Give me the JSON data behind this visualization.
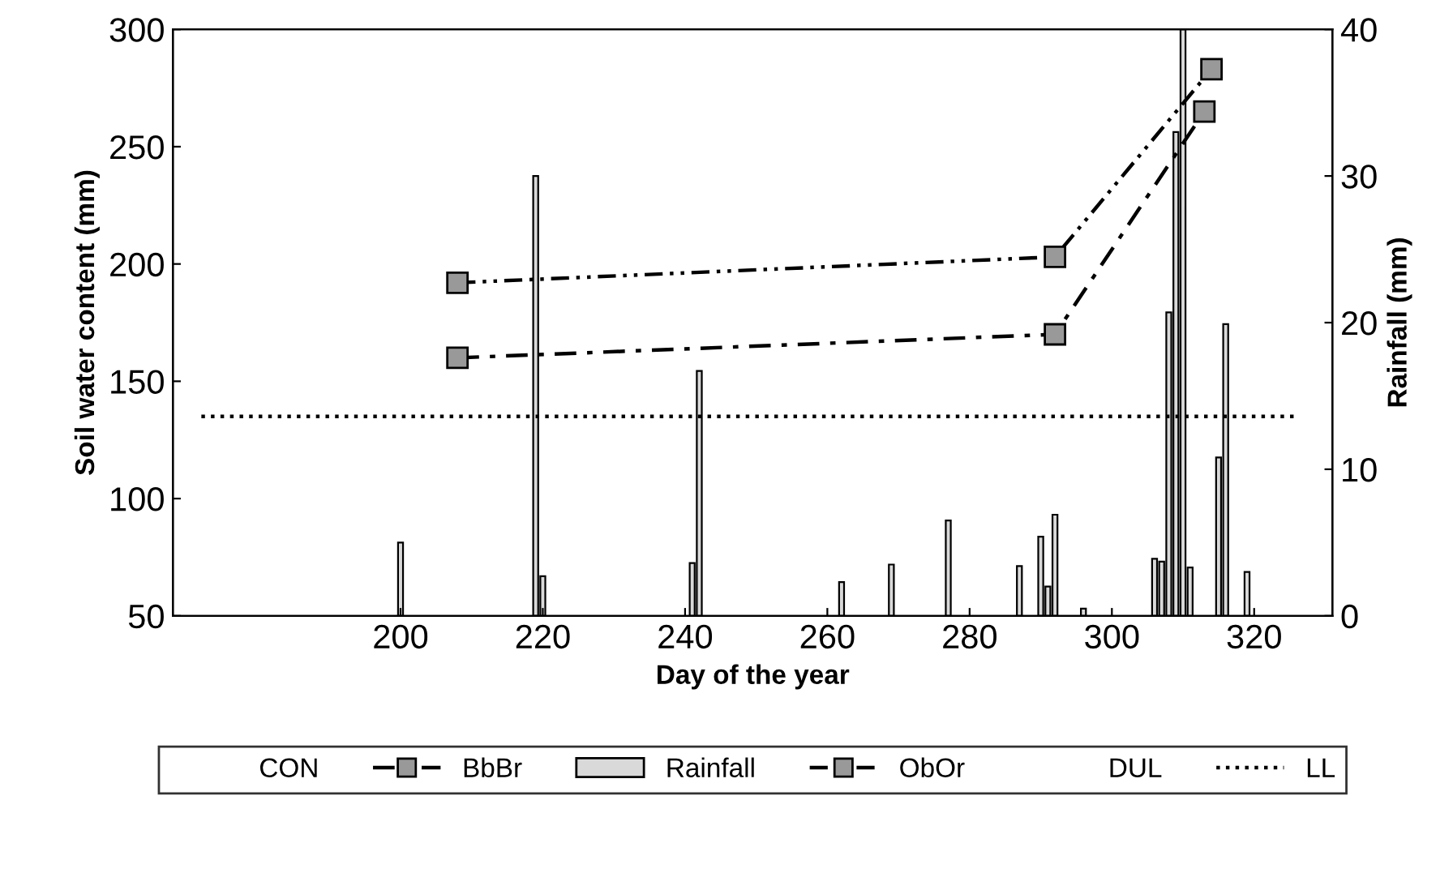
{
  "chart_data": {
    "type": "line",
    "xlabel": "Day of the year",
    "ylabel": "Soil water content (mm)",
    "y2label": "Rainfall (mm)",
    "xlim": [
      168,
      331
    ],
    "xticks": [
      200,
      220,
      240,
      260,
      280,
      300,
      320
    ],
    "ylim": [
      50,
      300
    ],
    "yticks": [
      50,
      100,
      150,
      200,
      250,
      300
    ],
    "y2lim": [
      0,
      40
    ],
    "y2ticks": [
      0,
      10,
      20,
      30,
      40
    ],
    "grid": false,
    "legend": "bottom",
    "series": [
      {
        "name": "CON",
        "color": null,
        "marker": "none"
      },
      {
        "name": "BbBr",
        "color": "#000000",
        "x": [
          208,
          292,
          313
        ],
        "values": [
          160,
          170,
          265
        ],
        "marker": "square",
        "line_style": "dashdot"
      },
      {
        "name": "Rainfall",
        "type": "bar",
        "axis": "y2",
        "color": "#d9d9d9",
        "x": [
          200,
          219,
          220,
          241,
          242,
          262,
          269,
          277,
          287,
          290,
          291,
          292,
          296,
          306,
          307,
          308,
          309,
          310,
          311,
          315,
          316,
          319
        ],
        "values": [
          5.0,
          30,
          2.7,
          3.6,
          16.7,
          2.3,
          3.5,
          6.5,
          3.4,
          5.4,
          2.0,
          6.9,
          0.5,
          3.9,
          3.7,
          20.7,
          33,
          40,
          3.3,
          10.8,
          19.9,
          3.0
        ]
      },
      {
        "name": "ObOr",
        "color": "#000000",
        "x": [
          208,
          292,
          314
        ],
        "values": [
          192,
          203,
          283
        ],
        "marker": "square",
        "line_style": "dashdotdot"
      },
      {
        "name": "DUL",
        "color": null,
        "marker": "none"
      },
      {
        "name": "LL",
        "color": "#000000",
        "x": [
          172,
          326
        ],
        "values": [
          135,
          135
        ],
        "marker": "none",
        "line_style": "dotted"
      }
    ]
  }
}
